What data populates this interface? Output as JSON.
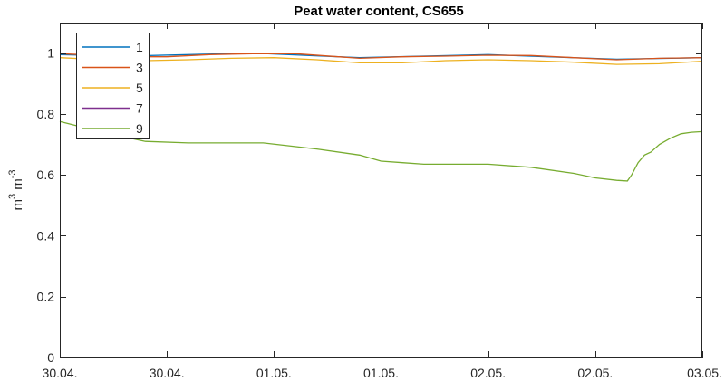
{
  "chart_data": {
    "type": "line",
    "title": "Peat water content, CS655",
    "ylabel_main": "m",
    "ylabel_sup1": "3",
    "ylabel_mid": " m",
    "ylabel_sup2": "-3",
    "xlabel": "",
    "xlim": [
      0,
      3
    ],
    "ylim": [
      0,
      1.1
    ],
    "yticks": [
      0,
      0.2,
      0.4,
      0.6,
      0.8,
      1
    ],
    "ytick_labels": [
      "0",
      "0.2",
      "0.4",
      "0.6",
      "0.8",
      "1"
    ],
    "xticks": [
      0,
      0.5,
      1,
      1.5,
      2,
      2.5,
      3
    ],
    "xtick_labels": [
      "30.04.",
      "30.04.",
      "01.05.",
      "01.05.",
      "02.05.",
      "02.05.",
      "03.05."
    ],
    "grid": false,
    "legend_position": "top-left",
    "series": [
      {
        "name": "1",
        "color": "#0072BD",
        "points": [
          [
            0,
            0.995
          ],
          [
            0.3,
            0.99
          ],
          [
            0.9,
            1.0
          ],
          [
            1.4,
            0.985
          ],
          [
            2.0,
            0.995
          ],
          [
            2.6,
            0.98
          ],
          [
            3.0,
            0.985
          ]
        ]
      },
      {
        "name": "3",
        "color": "#D95319",
        "points": [
          [
            0,
            0.998
          ],
          [
            0.1,
            0.995
          ],
          [
            0.2,
            0.99
          ],
          [
            0.3,
            0.988
          ],
          [
            0.5,
            0.988
          ],
          [
            0.7,
            0.995
          ],
          [
            0.9,
            0.998
          ],
          [
            1.1,
            0.998
          ],
          [
            1.3,
            0.988
          ],
          [
            1.4,
            0.983
          ],
          [
            1.6,
            0.988
          ],
          [
            1.8,
            0.99
          ],
          [
            2.0,
            0.993
          ],
          [
            2.2,
            0.992
          ],
          [
            2.4,
            0.985
          ],
          [
            2.6,
            0.978
          ],
          [
            2.8,
            0.983
          ],
          [
            3.0,
            0.985
          ]
        ]
      },
      {
        "name": "5",
        "color": "#EDB120",
        "points": [
          [
            0,
            0.985
          ],
          [
            0.2,
            0.978
          ],
          [
            0.4,
            0.975
          ],
          [
            0.6,
            0.978
          ],
          [
            0.8,
            0.983
          ],
          [
            1.0,
            0.985
          ],
          [
            1.2,
            0.978
          ],
          [
            1.4,
            0.968
          ],
          [
            1.6,
            0.968
          ],
          [
            1.8,
            0.975
          ],
          [
            2.0,
            0.978
          ],
          [
            2.2,
            0.975
          ],
          [
            2.4,
            0.97
          ],
          [
            2.6,
            0.963
          ],
          [
            2.8,
            0.965
          ],
          [
            3.0,
            0.973
          ]
        ]
      },
      {
        "name": "7",
        "color": "#7E2F8E",
        "points": []
      },
      {
        "name": "9",
        "color": "#77AC30",
        "points": [
          [
            0,
            0.775
          ],
          [
            0.2,
            0.74
          ],
          [
            0.4,
            0.71
          ],
          [
            0.6,
            0.705
          ],
          [
            0.95,
            0.705
          ],
          [
            1.2,
            0.685
          ],
          [
            1.4,
            0.665
          ],
          [
            1.5,
            0.645
          ],
          [
            1.6,
            0.64
          ],
          [
            1.7,
            0.635
          ],
          [
            2.0,
            0.635
          ],
          [
            2.2,
            0.625
          ],
          [
            2.4,
            0.605
          ],
          [
            2.5,
            0.59
          ],
          [
            2.6,
            0.582
          ],
          [
            2.65,
            0.58
          ],
          [
            2.67,
            0.6
          ],
          [
            2.7,
            0.64
          ],
          [
            2.73,
            0.665
          ],
          [
            2.76,
            0.675
          ],
          [
            2.8,
            0.7
          ],
          [
            2.85,
            0.72
          ],
          [
            2.9,
            0.735
          ],
          [
            2.95,
            0.74
          ],
          [
            3.0,
            0.742
          ]
        ]
      }
    ]
  }
}
